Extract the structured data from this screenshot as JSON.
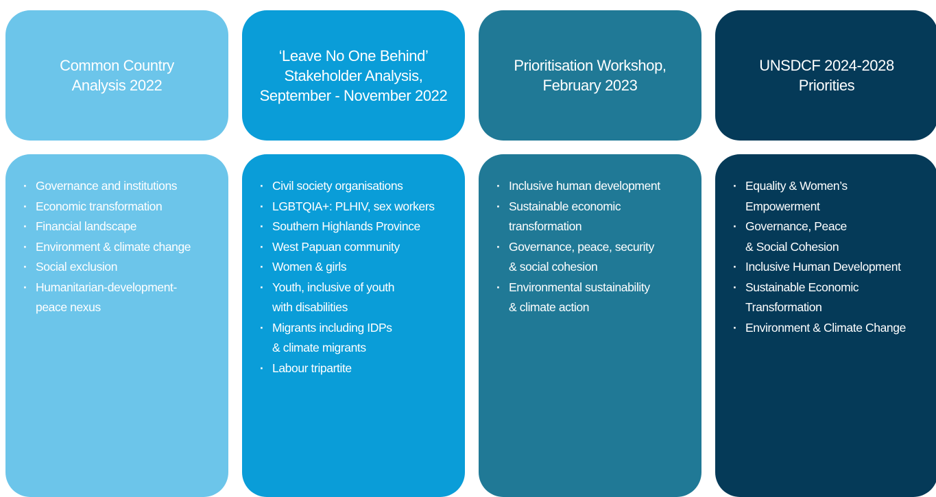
{
  "columns": [
    {
      "header": [
        "Common Country",
        "Analysis 2022"
      ],
      "items": [
        [
          "Governance and institutions"
        ],
        [
          "Economic transformation"
        ],
        [
          "Financial landscape"
        ],
        [
          "Environment & climate change"
        ],
        [
          "Social exclusion"
        ],
        [
          "Humanitarian-development-",
          "peace nexus"
        ]
      ]
    },
    {
      "header": [
        "‘Leave No One Behind’",
        "Stakeholder Analysis,",
        "September - November 2022"
      ],
      "items": [
        [
          "Civil society organisations"
        ],
        [
          "LGBTQIA+: PLHIV, sex workers"
        ],
        [
          "Southern Highlands Province"
        ],
        [
          "West Papuan community"
        ],
        [
          "Women & girls"
        ],
        [
          "Youth, inclusive of youth",
          "with disabilities"
        ],
        [
          "Migrants including IDPs",
          "& climate migrants"
        ],
        [
          "Labour tripartite"
        ]
      ]
    },
    {
      "header": [
        "Prioritisation Workshop,",
        "February 2023"
      ],
      "items": [
        [
          "Inclusive human development"
        ],
        [
          "Sustainable economic",
          "transformation"
        ],
        [
          "Governance, peace, security",
          "& social cohesion"
        ],
        [
          "Environmental sustainability",
          "& climate action"
        ]
      ]
    },
    {
      "header": [
        "UNSDCF 2024-2028",
        "Priorities"
      ],
      "items": [
        [
          "Equality & Women’s",
          "Empowerment"
        ],
        [
          "Governance, Peace",
          "& Social Cohesion"
        ],
        [
          "Inclusive Human Development"
        ],
        [
          "Sustainable Economic",
          "Transformation"
        ],
        [
          "Environment & Climate Change"
        ]
      ]
    }
  ]
}
